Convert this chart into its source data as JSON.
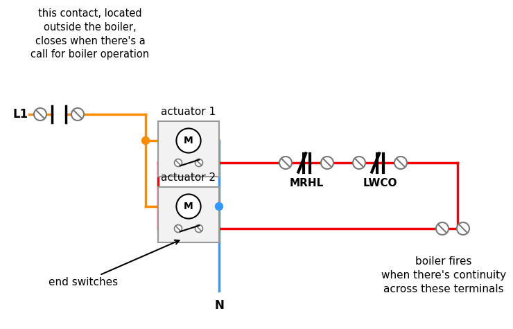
{
  "bg_color": "#ffffff",
  "orange_color": "#FF8C00",
  "red_color": "#EE0000",
  "blue_color": "#3399FF",
  "black_color": "#000000",
  "gray_color": "#777777",
  "box_fill": "#f2f2f2",
  "box_edge": "#999999",
  "text_annotation_top": "this contact, located\noutside the boiler,\ncloses when there's a\ncall for boiler operation",
  "label_L1": "L1",
  "label_N": "N",
  "label_act1": "actuator 1",
  "label_act2": "actuator 2",
  "label_MRHL": "MRHL",
  "label_LWCO": "LWCO",
  "label_end_switches": "end switches",
  "label_boiler_fires": "boiler fires\nwhen there's continuity\nacross these terminals",
  "figsize": [
    7.4,
    4.75
  ],
  "dpi": 100
}
